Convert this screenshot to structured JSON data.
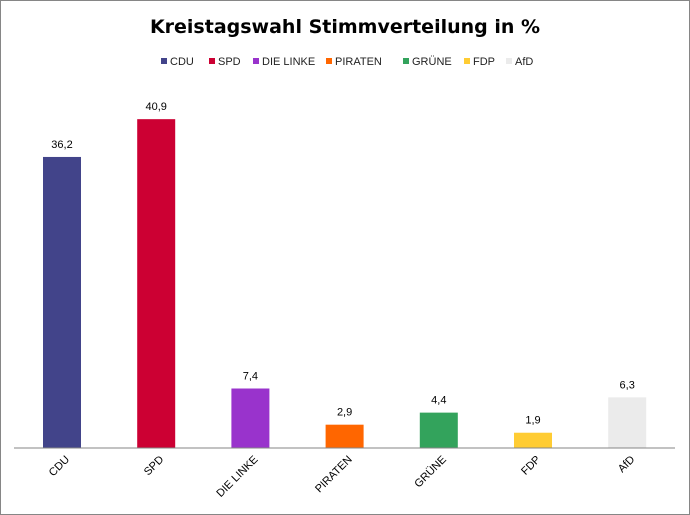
{
  "chart_data": {
    "type": "bar",
    "title": "Kreistagswahl Stimmverteilung in %",
    "categories": [
      "CDU",
      "SPD",
      "DIE LINKE",
      "PIRATEN",
      "GRÜNE",
      "FDP",
      "AfD"
    ],
    "values": [
      36.2,
      40.9,
      7.4,
      2.9,
      4.4,
      1.9,
      6.3
    ],
    "value_labels": [
      "36,2",
      "40,9",
      "7,4",
      "2,9",
      "4,4",
      "1,9",
      "6,3"
    ],
    "colors": [
      "#42448A",
      "#CC0033",
      "#9933CC",
      "#FF6600",
      "#33A35C",
      "#FFCC33",
      "#EBEBEB"
    ],
    "legend": [
      "CDU",
      "SPD",
      "DIE LINKE",
      "PIRATEN",
      "GRÜNE",
      "FDP",
      "AfD"
    ],
    "legend_position": "top",
    "xlabel": "",
    "ylabel": "",
    "ylim": [
      0,
      45
    ],
    "grid": false
  }
}
